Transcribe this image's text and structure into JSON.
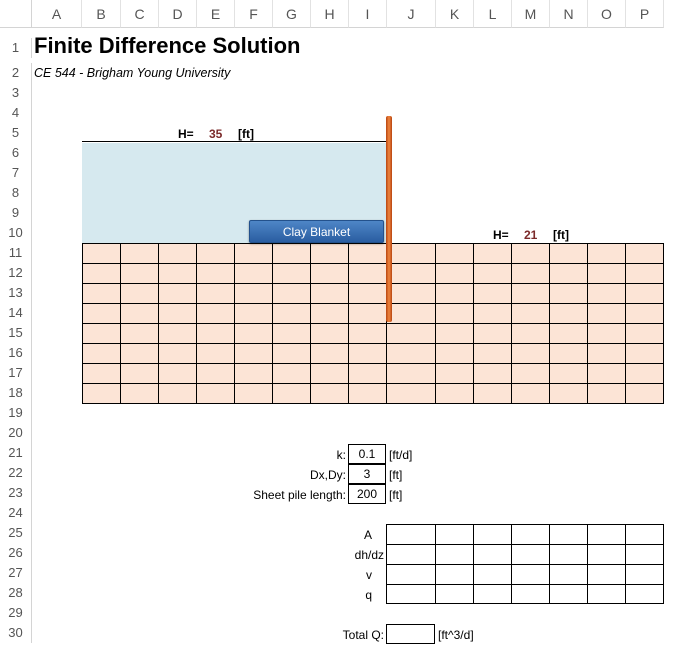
{
  "columns": [
    "A",
    "B",
    "C",
    "D",
    "E",
    "F",
    "G",
    "H",
    "I",
    "J",
    "K",
    "L",
    "M",
    "N",
    "O",
    "P"
  ],
  "rows": [
    "1",
    "2",
    "3",
    "4",
    "5",
    "6",
    "7",
    "8",
    "9",
    "10",
    "11",
    "12",
    "13",
    "14",
    "15",
    "16",
    "17",
    "18",
    "19",
    "20",
    "21",
    "22",
    "23",
    "24",
    "25",
    "26",
    "27",
    "28",
    "29",
    "30"
  ],
  "title": "Finite Difference Solution",
  "subtitle": "CE 544 - Brigham Young University",
  "upstream": {
    "label": "H=",
    "value": "35",
    "unit": "[ft]"
  },
  "downstream": {
    "label": "H=",
    "value": "21",
    "unit": "[ft]"
  },
  "clay_button": "Clay Blanket",
  "inputs": {
    "k": {
      "label": "k:",
      "value": "0.1",
      "unit": "[ft/d]"
    },
    "dx": {
      "label": "Dx,Dy:",
      "value": "3",
      "unit": "[ft]"
    },
    "pile": {
      "label": "Sheet pile length:",
      "value": "200",
      "unit": "[ft]"
    }
  },
  "output_rows": [
    "A",
    "dh/dz",
    "v",
    "q"
  ],
  "total": {
    "label": "Total Q:",
    "value": "",
    "unit": "[ft^3/d]"
  },
  "colors": {
    "water": "#d6e9ef",
    "soil": "#fce4d6",
    "pile": "#e8722c",
    "head_value": "#7b2a2a",
    "button": "#3a72b8"
  }
}
